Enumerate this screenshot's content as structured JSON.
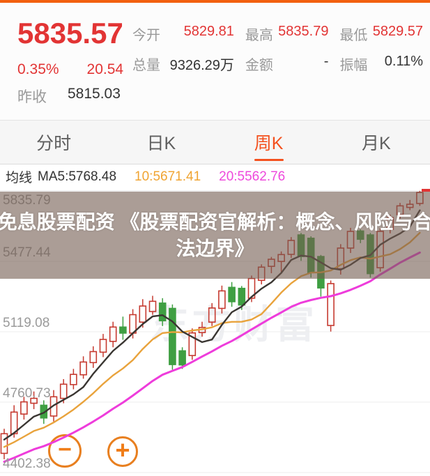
{
  "statusbar": {
    "color": "#f2600f"
  },
  "header": {
    "price": "5835.57",
    "change_percent": "0.35%",
    "change_value": "20.54",
    "prev_close_label": "昨收",
    "prev_close_value": "5815.03",
    "stats": [
      {
        "label": "今开",
        "value": "5829.81",
        "red": true
      },
      {
        "label": "最高",
        "value": "5835.79",
        "red": true
      },
      {
        "label": "最低",
        "value": "5829.57",
        "red": true
      },
      {
        "label": "总量",
        "value": "9326.29万",
        "red": false
      },
      {
        "label": "金额",
        "value": "-",
        "red": false
      },
      {
        "label": "振幅",
        "value": "0.11%",
        "red": false
      }
    ]
  },
  "tabs": [
    {
      "label": "分时",
      "active": false
    },
    {
      "label": "日K",
      "active": false
    },
    {
      "label": "周K",
      "active": true
    },
    {
      "label": "月K",
      "active": false
    }
  ],
  "ma_legend": {
    "title": "均线",
    "ma5": "MA5:5768.48",
    "ma10": "10:5671.41",
    "ma20": "20:5562.76"
  },
  "overlay_banner": {
    "line1": "免息股票配资 《股票配资官解析：概念、风险与合",
    "line2": "法边界》"
  },
  "watermark": "东方财富",
  "controls": {
    "zoom_out_symbol": "−",
    "zoom_in_symbol": "+"
  },
  "chart_data": {
    "type": "candlestick",
    "period": "weekly",
    "y_axis_labels": [
      "5835.79",
      "5477.44",
      "5119.08",
      "4760.73",
      "4402.38"
    ],
    "y_gridline_prices": [
      5835.79,
      5477.44,
      5119.08,
      4760.73,
      4402.38
    ],
    "last_price_tick": 5835.79,
    "colors": {
      "up": "#c63a30",
      "down": "#3f9f42",
      "ma5": "#3a3632",
      "ma10": "#e9a33c",
      "ma20": "#ee3cdb",
      "tick": "#e23434"
    },
    "candles": [
      [
        4500,
        4600,
        4470,
        4625
      ],
      [
        4600,
        4710,
        4580,
        4745
      ],
      [
        4700,
        4762,
        4672,
        4788
      ],
      [
        4755,
        4780,
        4725,
        4815
      ],
      [
        4745,
        4680,
        4650,
        4770
      ],
      [
        4690,
        4788,
        4662,
        4822
      ],
      [
        4780,
        4852,
        4755,
        4878
      ],
      [
        4850,
        4902,
        4826,
        4930
      ],
      [
        4900,
        4965,
        4880,
        4994
      ],
      [
        4962,
        5018,
        4935,
        5045
      ],
      [
        5015,
        5080,
        4990,
        5108
      ],
      [
        5070,
        5143,
        5040,
        5170
      ],
      [
        5143,
        5112,
        5078,
        5196
      ],
      [
        5112,
        5206,
        5085,
        5234
      ],
      [
        5168,
        5250,
        5140,
        5285
      ],
      [
        5222,
        5274,
        5205,
        5302
      ],
      [
        5265,
        5175,
        5148,
        5290
      ],
      [
        5238,
        4952,
        4926,
        5258
      ],
      [
        5022,
        4950,
        4930,
        5040
      ],
      [
        4998,
        5113,
        4976,
        5136
      ],
      [
        5115,
        5141,
        5094,
        5170
      ],
      [
        5168,
        5240,
        5148,
        5265
      ],
      [
        5238,
        5327,
        5212,
        5354
      ],
      [
        5345,
        5272,
        5246,
        5372
      ],
      [
        5340,
        5255,
        5230,
        5352
      ],
      [
        5290,
        5390,
        5270,
        5405
      ],
      [
        5381,
        5448,
        5360,
        5462
      ],
      [
        5452,
        5488,
        5417,
        5500
      ],
      [
        5477,
        5512,
        5420,
        5528
      ],
      [
        5513,
        5584,
        5495,
        5601
      ],
      [
        5612,
        5502,
        5480,
        5622
      ],
      [
        5595,
        5420,
        5395,
        5605
      ],
      [
        5502,
        5342,
        5298,
        5510
      ],
      [
        5151,
        5364,
        5120,
        5380
      ],
      [
        5440,
        5545,
        5410,
        5565
      ],
      [
        5545,
        5630,
        5520,
        5648
      ],
      [
        5632,
        5590,
        5570,
        5640
      ],
      [
        5612,
        5415,
        5395,
        5622
      ],
      [
        5445,
        5630,
        5425,
        5645
      ],
      [
        5640,
        5700,
        5620,
        5715
      ],
      [
        5715,
        5760,
        5695,
        5775
      ],
      [
        5752,
        5768,
        5738,
        5790
      ],
      [
        5772,
        5828,
        5760,
        5836
      ]
    ]
  }
}
